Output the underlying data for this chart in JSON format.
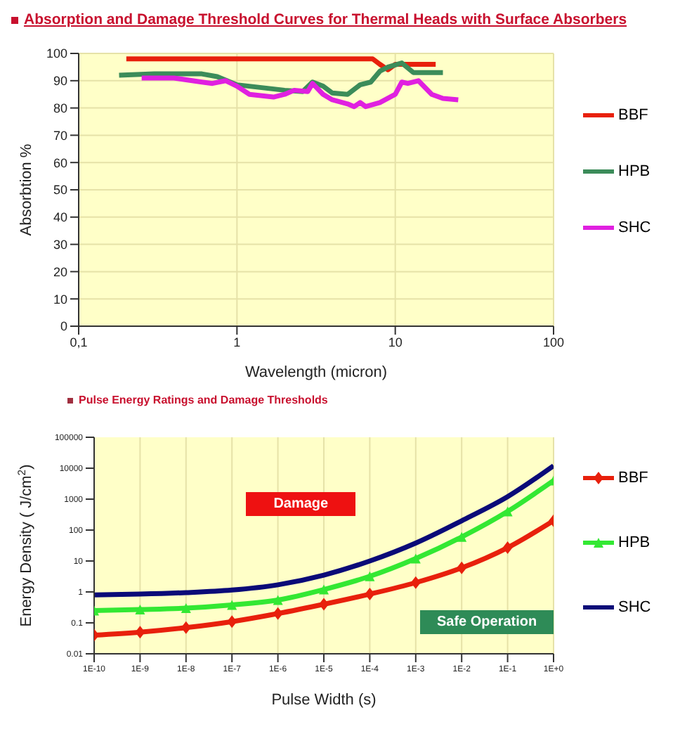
{
  "chart_data": [
    {
      "type": "line",
      "title": "Absorption and Damage Threshold Curves for Thermal Heads with Surface Absorbers",
      "xlabel": "Wavelength  (micron)",
      "ylabel": "Absorbtion %",
      "log": "x",
      "xlim": [
        0.1,
        100
      ],
      "xticks": [
        {
          "value": 0.1,
          "label": "0,1"
        },
        1,
        10,
        100
      ],
      "ylim": [
        0,
        100
      ],
      "yticks": [
        0,
        10,
        20,
        30,
        40,
        50,
        60,
        70,
        80,
        90,
        100
      ],
      "grid": true,
      "legend": "right",
      "marker": "none",
      "line_style": "solid",
      "series": [
        {
          "name": "BBF",
          "color": "#e8200c",
          "x": [
            0.2,
            7.2,
            8,
            9,
            10,
            12,
            18
          ],
          "values": [
            98,
            98,
            96,
            94,
            96,
            96,
            96
          ]
        },
        {
          "name": "HPB",
          "color": "#3c8c5a",
          "x": [
            0.18,
            0.3,
            0.6,
            0.75,
            1,
            2,
            2.6,
            3,
            3.5,
            4,
            5,
            6,
            7,
            8,
            9,
            11,
            13,
            20
          ],
          "values": [
            92,
            92.5,
            92.5,
            91.5,
            88.5,
            86.5,
            86,
            89.5,
            88,
            85.5,
            85,
            88.5,
            89.5,
            93.5,
            95,
            96.5,
            93,
            93
          ]
        },
        {
          "name": "SHC",
          "color": "#e020e0",
          "x": [
            0.25,
            0.4,
            0.6,
            0.7,
            0.85,
            1,
            1.2,
            1.7,
            2,
            2.3,
            2.8,
            3,
            3.5,
            4,
            5,
            5.5,
            6,
            6.5,
            8,
            10,
            11,
            12,
            14,
            17,
            20,
            25
          ],
          "values": [
            91,
            91,
            89.5,
            89,
            90,
            88,
            85,
            84,
            85,
            86.5,
            86,
            89,
            85,
            83,
            81.5,
            80.5,
            82,
            80.5,
            82,
            85,
            89.5,
            89,
            90,
            85,
            83.5,
            83
          ]
        }
      ]
    },
    {
      "type": "line",
      "title": "Pulse Energy Ratings and Damage Thresholds",
      "xlabel": "Pulse Width (s)",
      "ylabel": "Energy Density ( J/cm$^{2}$)",
      "log": "xy",
      "xlim": [
        1e-10,
        1
      ],
      "xticks": [
        {
          "value": 1e-10,
          "label": "1E-10"
        },
        {
          "value": 1e-09,
          "label": "1E-9"
        },
        {
          "value": 1e-08,
          "label": "1E-8"
        },
        {
          "value": 1e-07,
          "label": "1E-7"
        },
        {
          "value": 1e-06,
          "label": "1E-6"
        },
        {
          "value": 1e-05,
          "label": "1E-5"
        },
        {
          "value": 0.0001,
          "label": "1E-4"
        },
        {
          "value": 0.001,
          "label": "1E-3"
        },
        {
          "value": 0.01,
          "label": "1E-2"
        },
        {
          "value": 0.1,
          "label": "1E-1"
        },
        {
          "value": 1,
          "label": "1E+0"
        }
      ],
      "ylim": [
        0.01,
        100000
      ],
      "yticks": [
        0.01,
        0.1,
        1,
        10,
        100,
        1000,
        10000,
        100000
      ],
      "grid": "x",
      "legend": "right",
      "line_style": "solid",
      "annotations": [
        "Damage",
        "Safe Operation"
      ],
      "x": [
        1e-10,
        1e-09,
        1e-08,
        1e-07,
        1e-06,
        1e-05,
        0.0001,
        0.001,
        0.01,
        0.1,
        1
      ],
      "series": [
        {
          "name": "BBF",
          "color": "#e8200c",
          "marker": "diamond",
          "values": [
            0.04,
            0.05,
            0.07,
            0.11,
            0.2,
            0.4,
            0.85,
            2,
            6,
            27,
            200
          ]
        },
        {
          "name": "HPB",
          "color": "#33e833",
          "marker": "triangle",
          "values": [
            0.25,
            0.27,
            0.3,
            0.38,
            0.55,
            1.2,
            3.2,
            12,
            60,
            400,
            4000
          ]
        },
        {
          "name": "SHC",
          "color": "#0a0a78",
          "marker": "none",
          "values": [
            0.8,
            0.85,
            0.95,
            1.15,
            1.7,
            3.5,
            10,
            38,
            200,
            1200,
            12000
          ]
        }
      ]
    }
  ]
}
